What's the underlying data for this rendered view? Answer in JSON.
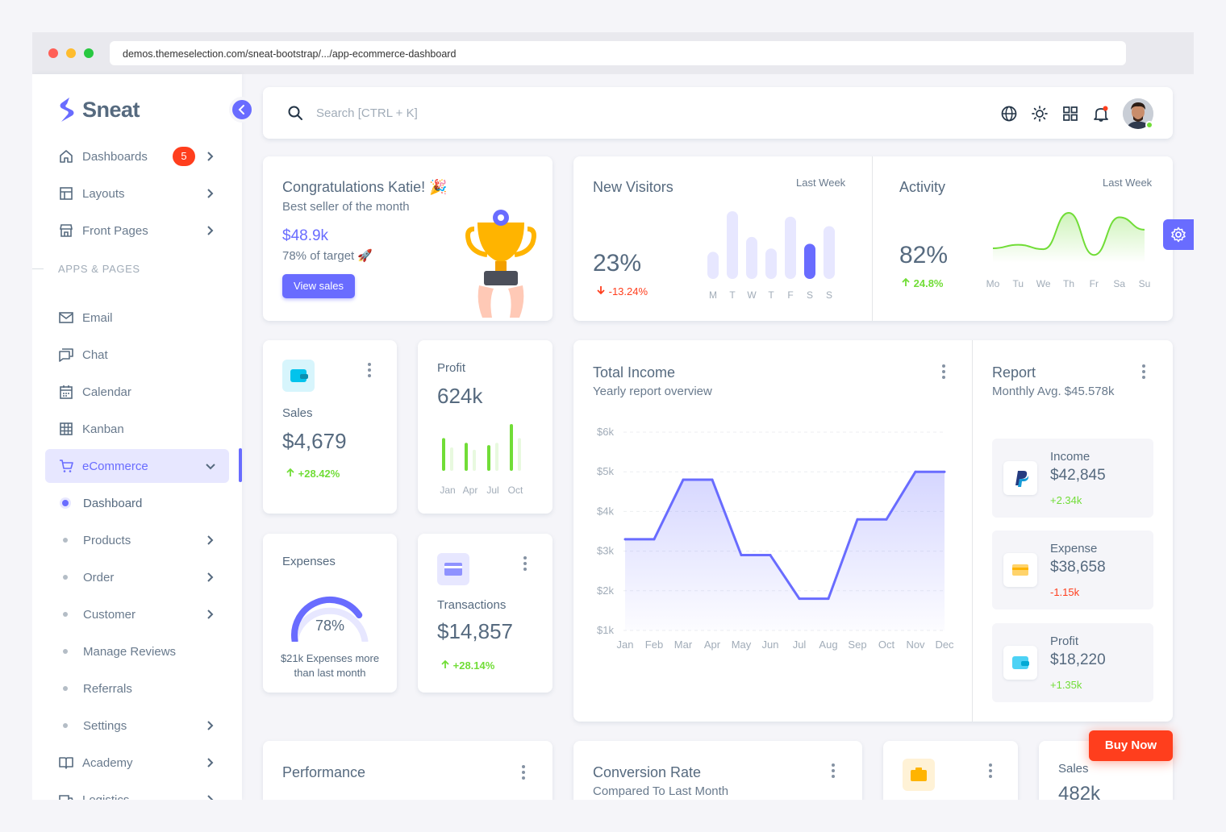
{
  "browser": {
    "url": "demos.themeselection.com/sneat-bootstrap/.../app-ecommerce-dashboard"
  },
  "sidebar": {
    "brand": "Sneat",
    "top_items": [
      {
        "label": "Dashboards",
        "icon": "home-icon",
        "badge": "5"
      },
      {
        "label": "Layouts",
        "icon": "layout-icon"
      },
      {
        "label": "Front Pages",
        "icon": "store-icon"
      }
    ],
    "section_label": "APPS & PAGES",
    "app_items": [
      {
        "label": "Email",
        "icon": "mail-icon"
      },
      {
        "label": "Chat",
        "icon": "chat-icon"
      },
      {
        "label": "Calendar",
        "icon": "calendar-icon"
      },
      {
        "label": "Kanban",
        "icon": "grid-icon"
      },
      {
        "label": "eCommerce",
        "icon": "cart-icon"
      }
    ],
    "ecommerce_sub": [
      {
        "label": "Dashboard"
      },
      {
        "label": "Products"
      },
      {
        "label": "Order"
      },
      {
        "label": "Customer"
      },
      {
        "label": "Manage Reviews"
      },
      {
        "label": "Referrals"
      },
      {
        "label": "Settings"
      }
    ],
    "bottom_items": [
      {
        "label": "Academy",
        "icon": "book-icon"
      },
      {
        "label": "Logistics",
        "icon": "truck-icon"
      }
    ]
  },
  "navbar": {
    "search_placeholder": "Search [CTRL + K]"
  },
  "congrats": {
    "title": "Congratulations Katie! 🎉",
    "subtitle": "Best seller of the month",
    "amount": "$48.9k",
    "target": "78% of target 🚀",
    "button": "View sales"
  },
  "visitors": {
    "title": "New Visitors",
    "period": "Last Week",
    "value": "23%",
    "change": "-13.24%",
    "days": [
      "M",
      "T",
      "W",
      "T",
      "F",
      "S",
      "S"
    ],
    "bars": [
      0.4,
      1.0,
      0.62,
      0.45,
      0.92,
      0.52,
      0.78
    ],
    "highlight_index": 5,
    "bar_color": "#e7e7ff",
    "highlight_color": "#696cff"
  },
  "activity": {
    "title": "Activity",
    "period": "Last Week",
    "value": "82%",
    "change": "24.8%",
    "days": [
      "Mo",
      "Tu",
      "We",
      "Th",
      "Fr",
      "Sa",
      "Su"
    ],
    "line": [
      0.2,
      0.28,
      0.18,
      1.0,
      0.05,
      0.9,
      0.62
    ],
    "color": "#71dd37"
  },
  "sales_card": {
    "label": "Sales",
    "value": "$4,679",
    "change": "+28.42%"
  },
  "profit_card": {
    "label": "Profit",
    "value": "624k",
    "months": [
      "Jan",
      "Apr",
      "Jul",
      "Oct"
    ],
    "bars": [
      [
        0.7,
        0.5
      ],
      [
        0.6,
        0.45
      ],
      [
        0.55,
        0.6
      ],
      [
        1.0,
        0.7
      ]
    ]
  },
  "expenses_card": {
    "label": "Expenses",
    "percent": "78%",
    "gauge": 0.78,
    "note1": "$21k Expenses more",
    "note2": "than last month"
  },
  "transactions_card": {
    "label": "Transactions",
    "value": "$14,857",
    "change": "+28.14%"
  },
  "income": {
    "title": "Total Income",
    "subtitle": "Yearly report overview",
    "chart_data": {
      "type": "area",
      "x": [
        "Jan",
        "Feb",
        "Mar",
        "Apr",
        "May",
        "Jun",
        "Jul",
        "Aug",
        "Sep",
        "Oct",
        "Nov",
        "Dec"
      ],
      "series": [
        {
          "values": [
            3.3,
            3.3,
            4.8,
            4.8,
            2.9,
            2.9,
            1.8,
            1.8,
            3.8,
            3.8,
            5.0,
            5.0
          ]
        }
      ],
      "y_ticks": [
        "$1k",
        "$2k",
        "$3k",
        "$4k",
        "$5k",
        "$6k"
      ],
      "ylim": [
        1,
        6
      ],
      "color": "#696cff"
    }
  },
  "report": {
    "title": "Report",
    "subtitle": "Monthly Avg. $45.578k",
    "items": [
      {
        "label": "Income",
        "value": "$42,845",
        "change": "+2.34k",
        "icon": "paypal-icon"
      },
      {
        "label": "Expense",
        "value": "$38,658",
        "change": "-1.15k",
        "icon": "credit-card-icon"
      },
      {
        "label": "Profit",
        "value": "$18,220",
        "change": "+1.35k",
        "icon": "wallet-icon"
      }
    ]
  },
  "bottom": {
    "performance": "Performance",
    "conversion_title": "Conversion Rate",
    "conversion_sub": "Compared To Last Month",
    "sales_label": "Sales",
    "sales_value": "482k"
  },
  "buy_now": "Buy Now"
}
